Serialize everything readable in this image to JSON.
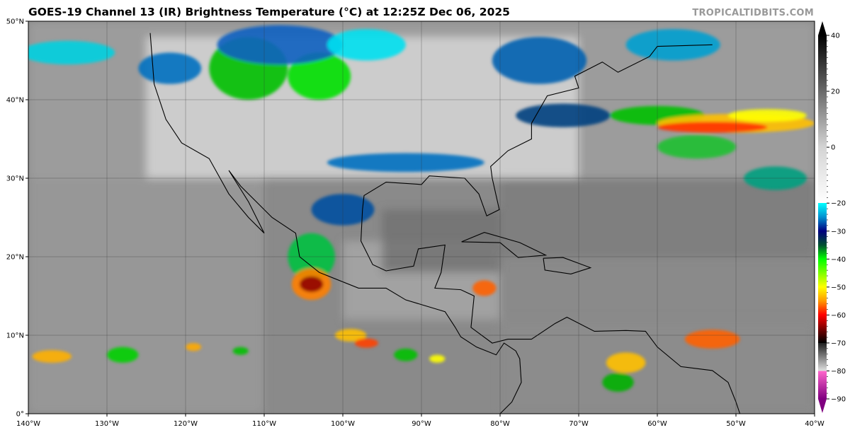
{
  "header": {
    "title": "GOES-19 Channel 13 (IR) Brightness Temperature (°C) at 12:25Z Dec 06, 2025",
    "credit": "TROPICALTIDBITS.COM"
  },
  "map": {
    "projection": "equirectangular",
    "lon_range": [
      -140,
      -40
    ],
    "lat_range": [
      0,
      50
    ],
    "lon_ticks": [
      "140°W",
      "130°W",
      "120°W",
      "110°W",
      "100°W",
      "90°W",
      "80°W",
      "70°W",
      "60°W",
      "50°W",
      "40°W"
    ],
    "lat_ticks": [
      "0°",
      "10°N",
      "20°N",
      "30°N",
      "40°N",
      "50°N"
    ],
    "gridlines": true,
    "background_color": "#8a8a8a"
  },
  "colorbar": {
    "range": [
      -90,
      40
    ],
    "tick_labels": [
      "40",
      "20",
      "0",
      "−20",
      "−30",
      "−40",
      "−50",
      "−60",
      "−70",
      "−80",
      "−90"
    ],
    "tick_values": [
      40,
      20,
      0,
      -20,
      -30,
      -40,
      -50,
      -60,
      -70,
      -80,
      -90
    ],
    "extend": "both",
    "stops": [
      {
        "t": 40,
        "c": "#000000"
      },
      {
        "t": 0,
        "c": "#d4d4d4"
      },
      {
        "t": -20,
        "c": "#ffffff"
      },
      {
        "t": -20,
        "c": "#00ffff"
      },
      {
        "t": -25,
        "c": "#0090d0"
      },
      {
        "t": -30,
        "c": "#000080"
      },
      {
        "t": -35,
        "c": "#005030"
      },
      {
        "t": -40,
        "c": "#00ff00"
      },
      {
        "t": -50,
        "c": "#ffff00"
      },
      {
        "t": -55,
        "c": "#ff9900"
      },
      {
        "t": -60,
        "c": "#ff0000"
      },
      {
        "t": -66,
        "c": "#600000"
      },
      {
        "t": -70,
        "c": "#000000"
      },
      {
        "t": -70,
        "c": "#202020"
      },
      {
        "t": -80,
        "c": "#e0e0e0"
      },
      {
        "t": -80,
        "c": "#ff66cc"
      },
      {
        "t": -90,
        "c": "#800080"
      }
    ]
  }
}
